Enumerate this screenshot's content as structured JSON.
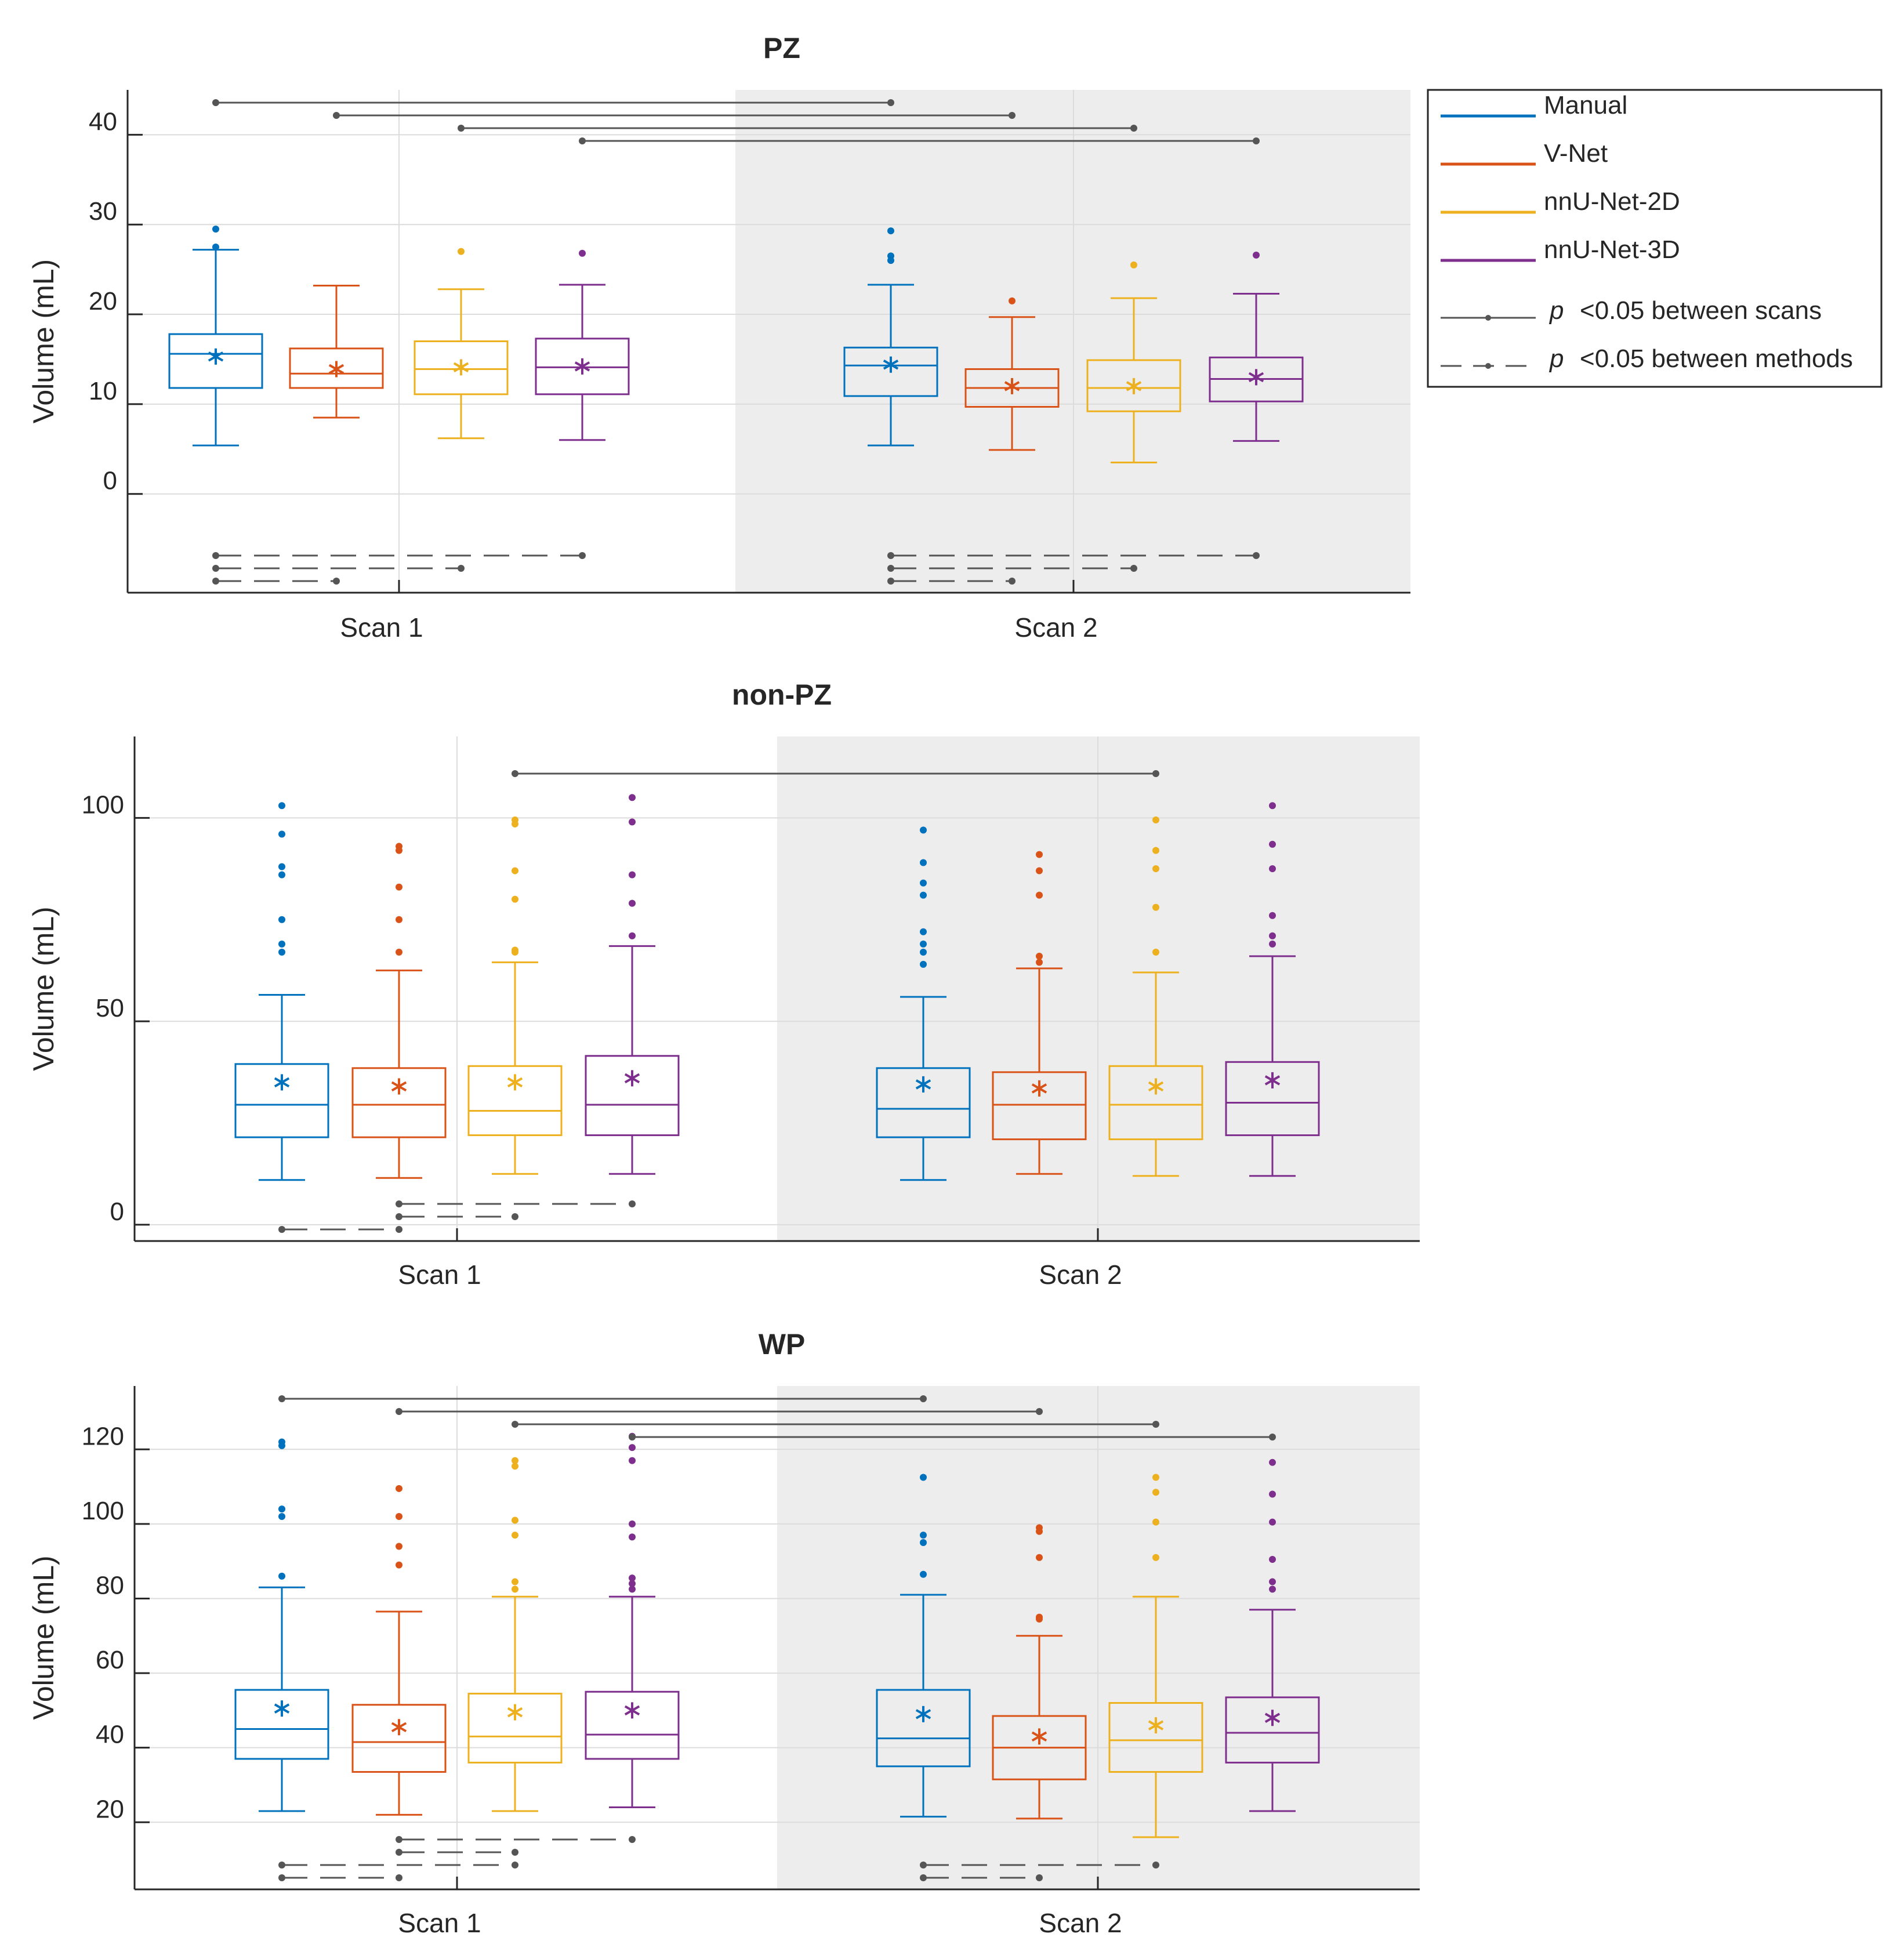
{
  "colors": {
    "manual": "#0072BD",
    "vnet": "#D95319",
    "nnunet2d": "#EDB120",
    "nnunet3d": "#7E2F8E",
    "sig": "#555555",
    "shade": "#ededed",
    "grid": "#dcdcdc"
  },
  "legend": {
    "items": [
      {
        "label": "Manual",
        "color": "#0072BD",
        "style": "line"
      },
      {
        "label": "V-Net",
        "color": "#D95319",
        "style": "line"
      },
      {
        "label": "nnU-Net-2D",
        "color": "#EDB120",
        "style": "line"
      },
      {
        "label": "nnU-Net-3D",
        "color": "#7E2F8E",
        "style": "line"
      },
      {
        "label": "<0.05 between scans",
        "p": "p",
        "color": "#555555",
        "style": "solid-dot"
      },
      {
        "label": "<0.05 between methods",
        "p": "p",
        "color": "#555555",
        "style": "dash-dot"
      }
    ]
  },
  "chart_data": [
    {
      "type": "box",
      "title": "PZ",
      "ylabel": "Volume (mL)",
      "ylim": [
        -11,
        45
      ],
      "yticks": [
        0,
        10,
        20,
        30,
        40
      ],
      "groups": [
        "Scan 1",
        "Scan 2"
      ],
      "methods": [
        "Manual",
        "V-Net",
        "nnU-Net-2D",
        "nnU-Net-3D"
      ],
      "boxes": [
        [
          {
            "min": 5.4,
            "q1": 11.8,
            "median": 15.6,
            "q3": 17.8,
            "max": 27.2,
            "mean": 15.3,
            "outliers": [
              29.5,
              27.5
            ]
          },
          {
            "min": 8.5,
            "q1": 11.8,
            "median": 13.4,
            "q3": 16.2,
            "max": 23.2,
            "mean": 13.9,
            "outliers": []
          },
          {
            "min": 6.2,
            "q1": 11.1,
            "median": 13.9,
            "q3": 17.0,
            "max": 22.8,
            "mean": 14.1,
            "outliers": [
              27.0
            ]
          },
          {
            "min": 6.0,
            "q1": 11.1,
            "median": 14.1,
            "q3": 17.3,
            "max": 23.3,
            "mean": 14.2,
            "outliers": [
              26.8
            ]
          }
        ],
        [
          {
            "min": 5.4,
            "q1": 10.9,
            "median": 14.3,
            "q3": 16.3,
            "max": 23.3,
            "mean": 14.4,
            "outliers": [
              29.3,
              26.5,
              26.0
            ]
          },
          {
            "min": 4.9,
            "q1": 9.7,
            "median": 11.8,
            "q3": 13.9,
            "max": 19.7,
            "mean": 12.0,
            "outliers": [
              21.5
            ]
          },
          {
            "min": 3.5,
            "q1": 9.2,
            "median": 11.8,
            "q3": 14.9,
            "max": 21.8,
            "mean": 12.0,
            "outliers": [
              25.5
            ]
          },
          {
            "min": 5.9,
            "q1": 10.3,
            "median": 12.8,
            "q3": 15.2,
            "max": 22.3,
            "mean": 13.0,
            "outliers": [
              26.6
            ]
          }
        ]
      ],
      "between_scans": [
        [
          0,
          0
        ],
        [
          0,
          1
        ],
        [
          0,
          2
        ],
        [
          0,
          3
        ]
      ],
      "between_methods": [
        {
          "scan": 0,
          "from": 0,
          "to": 3
        },
        {
          "scan": 0,
          "from": 0,
          "to": 2
        },
        {
          "scan": 0,
          "from": 0,
          "to": 1
        },
        {
          "scan": 1,
          "from": 0,
          "to": 3
        },
        {
          "scan": 1,
          "from": 0,
          "to": 2
        },
        {
          "scan": 1,
          "from": 0,
          "to": 1
        }
      ]
    },
    {
      "type": "box",
      "title": "non-PZ",
      "ylabel": "Volume (mL)",
      "ylim": [
        -4,
        120
      ],
      "yticks": [
        0,
        50,
        100
      ],
      "groups": [
        "Scan 1",
        "Scan 2"
      ],
      "methods": [
        "Manual",
        "V-Net",
        "nnU-Net-2D",
        "nnU-Net-3D"
      ],
      "boxes": [
        [
          {
            "min": 11,
            "q1": 21.5,
            "median": 29.5,
            "q3": 39.5,
            "max": 56.5,
            "mean": 35,
            "outliers": [
              103,
              96,
              88,
              86,
              75,
              69,
              67
            ]
          },
          {
            "min": 11.5,
            "q1": 21.5,
            "median": 29.5,
            "q3": 38.5,
            "max": 62.5,
            "mean": 34,
            "outliers": [
              93,
              92,
              83,
              75,
              67
            ]
          },
          {
            "min": 12.5,
            "q1": 22,
            "median": 28,
            "q3": 39,
            "max": 64.5,
            "mean": 35,
            "outliers": [
              99.5,
              98.5,
              87,
              80,
              67.5,
              67
            ]
          },
          {
            "min": 12.5,
            "q1": 22,
            "median": 29.5,
            "q3": 41.5,
            "max": 68.5,
            "mean": 36,
            "outliers": [
              105,
              99,
              86,
              79,
              71
            ]
          }
        ],
        [
          {
            "min": 11,
            "q1": 21.5,
            "median": 28.5,
            "q3": 38.5,
            "max": 56,
            "mean": 34.5,
            "outliers": [
              97,
              89,
              84,
              81,
              72,
              69,
              67,
              64
            ]
          },
          {
            "min": 12.5,
            "q1": 21,
            "median": 29.5,
            "q3": 37.5,
            "max": 63,
            "mean": 33.5,
            "outliers": [
              91,
              87,
              81,
              66,
              64.5
            ]
          },
          {
            "min": 12,
            "q1": 21,
            "median": 29.5,
            "q3": 39,
            "max": 62,
            "mean": 34,
            "outliers": [
              99.5,
              92,
              87.5,
              78,
              67
            ]
          },
          {
            "min": 12,
            "q1": 22,
            "median": 30,
            "q3": 40,
            "max": 66,
            "mean": 35.5,
            "outliers": [
              103,
              93.5,
              87.5,
              76,
              71,
              69
            ]
          }
        ]
      ],
      "between_scans": [
        [
          0,
          2
        ]
      ],
      "between_methods": [
        {
          "scan": 0,
          "from": 1,
          "to": 3
        },
        {
          "scan": 0,
          "from": 1,
          "to": 2
        },
        {
          "scan": 0,
          "from": 0,
          "to": 1
        }
      ]
    },
    {
      "type": "box",
      "title": "WP",
      "ylabel": "Volume (mL)",
      "ylim": [
        2,
        137
      ],
      "yticks": [
        20,
        40,
        60,
        80,
        100,
        120
      ],
      "groups": [
        "Scan 1",
        "Scan 2"
      ],
      "methods": [
        "Manual",
        "V-Net",
        "nnU-Net-2D",
        "nnU-Net-3D"
      ],
      "boxes": [
        [
          {
            "min": 23,
            "q1": 37,
            "median": 45,
            "q3": 55.5,
            "max": 83,
            "mean": 50.5,
            "outliers": [
              122,
              121,
              104,
              102,
              86
            ]
          },
          {
            "min": 22,
            "q1": 33.5,
            "median": 41.5,
            "q3": 51.5,
            "max": 76.5,
            "mean": 45.5,
            "outliers": [
              109.5,
              102,
              94,
              89
            ]
          },
          {
            "min": 23,
            "q1": 36,
            "median": 43,
            "q3": 54.5,
            "max": 80.5,
            "mean": 49.5,
            "outliers": [
              117,
              115.5,
              101,
              97,
              84.5,
              82.5
            ]
          },
          {
            "min": 24,
            "q1": 37,
            "median": 43.5,
            "q3": 55,
            "max": 80.5,
            "mean": 50,
            "outliers": [
              123.5,
              120.5,
              117,
              100,
              96.5,
              85.5,
              84,
              82.5
            ]
          }
        ],
        [
          {
            "min": 21.5,
            "q1": 35,
            "median": 42.5,
            "q3": 55.5,
            "max": 81,
            "mean": 49,
            "outliers": [
              112.5,
              97,
              95,
              86.5
            ]
          },
          {
            "min": 21,
            "q1": 31.5,
            "median": 40,
            "q3": 48.5,
            "max": 70,
            "mean": 43,
            "outliers": [
              99,
              98,
              91,
              75,
              74.5
            ]
          },
          {
            "min": 16,
            "q1": 33.5,
            "median": 42,
            "q3": 52,
            "max": 80.5,
            "mean": 46,
            "outliers": [
              112.5,
              108.5,
              100.5,
              91
            ]
          },
          {
            "min": 23,
            "q1": 36,
            "median": 44,
            "q3": 53.5,
            "max": 77,
            "mean": 48,
            "outliers": [
              116.5,
              108,
              100.5,
              90.5,
              84.5,
              82.5
            ]
          }
        ]
      ],
      "between_scans": [
        [
          0,
          0
        ],
        [
          0,
          1
        ],
        [
          0,
          2
        ],
        [
          0,
          3
        ]
      ],
      "between_methods": [
        {
          "scan": 0,
          "from": 1,
          "to": 3
        },
        {
          "scan": 0,
          "from": 1,
          "to": 2
        },
        {
          "scan": 0,
          "from": 0,
          "to": 2
        },
        {
          "scan": 0,
          "from": 0,
          "to": 1
        },
        {
          "scan": 1,
          "from": 0,
          "to": 2
        },
        {
          "scan": 1,
          "from": 0,
          "to": 1
        }
      ]
    }
  ]
}
